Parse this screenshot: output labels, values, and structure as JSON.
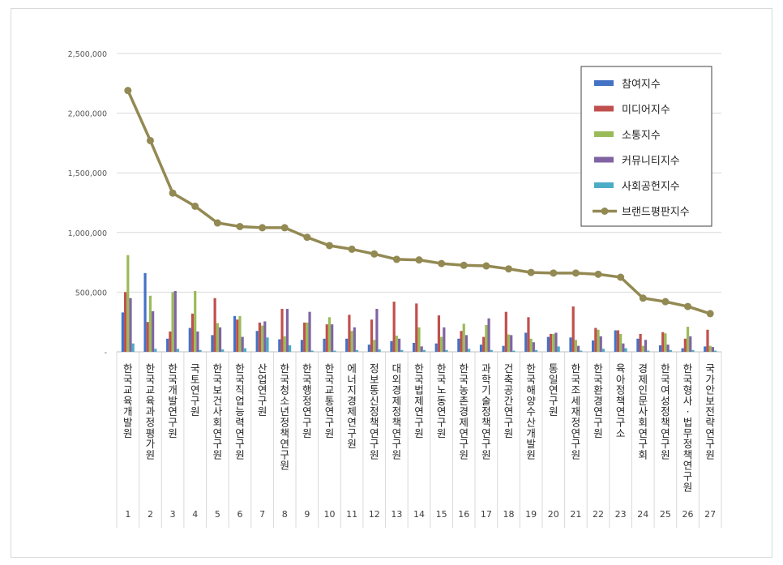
{
  "chart_data": {
    "type": "bar",
    "title": "",
    "xlabel": "",
    "ylabel": "",
    "ylim": [
      0,
      2500000
    ],
    "yticks": [
      "-",
      "500,000",
      "1,000,000",
      "1,500,000",
      "2,000,000",
      "2,500,000"
    ],
    "grid": true,
    "legend_position": "top-right",
    "index_labels": [
      "1",
      "2",
      "3",
      "4",
      "5",
      "6",
      "7",
      "8",
      "9",
      "10",
      "11",
      "12",
      "13",
      "14",
      "15",
      "16",
      "17",
      "18",
      "19",
      "20",
      "21",
      "22",
      "23",
      "24",
      "25",
      "26",
      "27"
    ],
    "categories": [
      "한국교육개발원",
      "한국교육과정평가원",
      "한국개발연구원",
      "국토연구원",
      "한국보건사회연구원",
      "한국직업능력연구원",
      "산업연구원",
      "한국청소년정책연구원",
      "한국행정연구원",
      "한국교통연구원",
      "에너지경제연구원",
      "정보통신정책연구원",
      "대외경제정책연구원",
      "한국법제연구원",
      "한국노동연구원",
      "한국농촌경제연구원",
      "과학기술정책연구원",
      "건축공간연구원",
      "한국해양수산개발원",
      "통일연구원",
      "한국조세재정연구원",
      "한국환경연구원",
      "육아정책연구소",
      "경제인문사회연구회",
      "한국여성정책연구원",
      "한국형사·법무정책연구원",
      "국가안보전략연구원"
    ],
    "series": [
      {
        "name": "참여지수",
        "type": "bar",
        "color": "#4472c4",
        "values": [
          330000,
          660000,
          110000,
          200000,
          140000,
          300000,
          175000,
          105000,
          100000,
          110000,
          110000,
          60000,
          90000,
          75000,
          70000,
          110000,
          60000,
          50000,
          160000,
          125000,
          120000,
          95000,
          180000,
          110000,
          55000,
          30000,
          45000
        ]
      },
      {
        "name": "미디어지수",
        "type": "bar",
        "color": "#c0504d",
        "values": [
          500000,
          250000,
          170000,
          320000,
          450000,
          270000,
          245000,
          360000,
          245000,
          230000,
          310000,
          270000,
          420000,
          405000,
          305000,
          175000,
          125000,
          335000,
          290000,
          150000,
          380000,
          200000,
          180000,
          150000,
          165000,
          110000,
          185000
        ]
      },
      {
        "name": "소통지수",
        "type": "bar",
        "color": "#9bbb59",
        "values": [
          810000,
          470000,
          500000,
          510000,
          240000,
          300000,
          220000,
          130000,
          245000,
          290000,
          175000,
          100000,
          135000,
          205000,
          125000,
          235000,
          225000,
          145000,
          110000,
          150000,
          100000,
          185000,
          150000,
          50000,
          155000,
          210000,
          50000
        ]
      },
      {
        "name": "커뮤니티지수",
        "type": "bar",
        "color": "#8064a2",
        "values": [
          450000,
          340000,
          510000,
          170000,
          205000,
          125000,
          255000,
          360000,
          335000,
          230000,
          205000,
          360000,
          110000,
          45000,
          205000,
          140000,
          280000,
          140000,
          80000,
          160000,
          50000,
          130000,
          70000,
          100000,
          60000,
          130000,
          40000
        ]
      },
      {
        "name": "사회공헌지수",
        "type": "bar",
        "color": "#4bacc6",
        "values": [
          70000,
          25000,
          25000,
          15000,
          20000,
          30000,
          120000,
          55000,
          10000,
          10000,
          15000,
          20000,
          15000,
          15000,
          15000,
          25000,
          15000,
          10000,
          15000,
          45000,
          10000,
          25000,
          30000,
          10000,
          15000,
          15000,
          10000
        ]
      },
      {
        "name": "브랜드평판지수",
        "type": "line",
        "color": "#938953",
        "values": [
          2190000,
          1770000,
          1330000,
          1220000,
          1080000,
          1050000,
          1040000,
          1040000,
          960000,
          890000,
          860000,
          820000,
          775000,
          770000,
          740000,
          725000,
          720000,
          695000,
          665000,
          660000,
          660000,
          650000,
          625000,
          450000,
          420000,
          380000,
          320000
        ]
      }
    ]
  }
}
